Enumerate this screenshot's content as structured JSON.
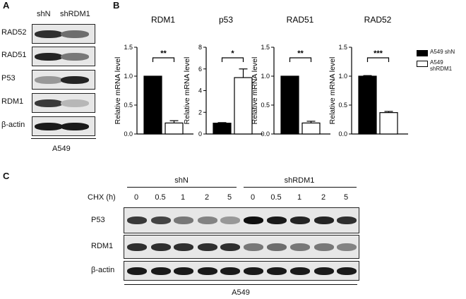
{
  "panel_a": {
    "letter": "A",
    "lanes": [
      "shN",
      "shRDM1"
    ],
    "rows": [
      {
        "label": "RAD52",
        "intensity": [
          0.85,
          0.55
        ]
      },
      {
        "label": "RAD51",
        "intensity": [
          0.9,
          0.5
        ]
      },
      {
        "label": "P53",
        "intensity": [
          0.35,
          0.9
        ]
      },
      {
        "label": "RDM1",
        "intensity": [
          0.8,
          0.2
        ]
      },
      {
        "label": "β-actin",
        "intensity": [
          0.95,
          0.95
        ]
      }
    ],
    "cell_line": "A549"
  },
  "panel_b": {
    "letter": "B",
    "legend": [
      {
        "label": "A549 shN",
        "fill": "#000000"
      },
      {
        "label": "A549 shRDM1",
        "fill": "#ffffff"
      }
    ],
    "ylabel": "Relative mRNA level"
  },
  "chart_data": [
    {
      "type": "bar",
      "title": "RDM1",
      "ylabel": "Relative mRNA level",
      "categories": [
        "A549 shN",
        "A549 shRDM1"
      ],
      "values": [
        1.0,
        0.19
      ],
      "errors": [
        0.0,
        0.04
      ],
      "ylim": [
        0,
        1.5
      ],
      "ticks": [
        "0.0",
        "0.5",
        "1.0",
        "1.5"
      ],
      "significance": "**"
    },
    {
      "type": "bar",
      "title": "p53",
      "ylabel": "Relative mRNA level",
      "categories": [
        "A549 shN",
        "A549 shRDM1"
      ],
      "values": [
        1.0,
        5.2
      ],
      "errors": [
        0.05,
        0.8
      ],
      "ylim": [
        0,
        8
      ],
      "ticks": [
        "0",
        "2",
        "4",
        "6",
        "8"
      ],
      "significance": "*"
    },
    {
      "type": "bar",
      "title": "RAD51",
      "ylabel": "Relative mRNA level",
      "categories": [
        "A549 shN",
        "A549 shRDM1"
      ],
      "values": [
        1.0,
        0.19
      ],
      "errors": [
        0.0,
        0.03
      ],
      "ylim": [
        0,
        1.5
      ],
      "ticks": [
        "0.0",
        "0.5",
        "1.0",
        "1.5"
      ],
      "significance": "**"
    },
    {
      "type": "bar",
      "title": "RAD52",
      "ylabel": "Relative mRNA level",
      "categories": [
        "A549 shN",
        "A549 shRDM1"
      ],
      "values": [
        1.0,
        0.37
      ],
      "errors": [
        0.01,
        0.02
      ],
      "ylim": [
        0,
        1.5
      ],
      "ticks": [
        "0.0",
        "0.5",
        "1.0",
        "1.5"
      ],
      "significance": "***"
    }
  ],
  "panel_c": {
    "letter": "C",
    "groups": [
      "shN",
      "shRDM1"
    ],
    "chx_label": "CHX (h)",
    "timepoints": [
      "0",
      "0.5",
      "1",
      "2",
      "5",
      "0",
      "0.5",
      "1",
      "2",
      "5"
    ],
    "rows": [
      {
        "label": "P53",
        "intensity": [
          0.8,
          0.75,
          0.5,
          0.45,
          0.35,
          1.0,
          0.95,
          0.9,
          0.9,
          0.85
        ]
      },
      {
        "label": "RDM1",
        "intensity": [
          0.85,
          0.85,
          0.85,
          0.85,
          0.85,
          0.5,
          0.55,
          0.5,
          0.5,
          0.45
        ]
      },
      {
        "label": "β-actin",
        "intensity": [
          0.95,
          0.95,
          0.95,
          0.95,
          0.95,
          0.95,
          0.95,
          0.95,
          0.95,
          0.95
        ]
      }
    ],
    "cell_line": "A549"
  }
}
